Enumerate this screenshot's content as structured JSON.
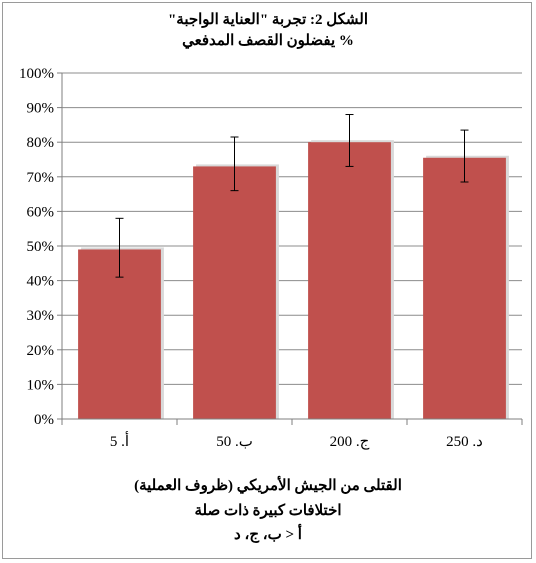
{
  "chart_data": {
    "type": "bar",
    "title": "الشكل 2: تجربة \"العناية الواجبة\"",
    "subtitle": "% يفضلون القصف المدفعي",
    "categories": [
      "أ. 5",
      "ب. 50",
      "ج. 200",
      "د. 250"
    ],
    "values": [
      0.49,
      0.73,
      0.8,
      0.755
    ],
    "error_low": [
      0.41,
      0.66,
      0.73,
      0.685
    ],
    "error_high": [
      0.58,
      0.815,
      0.88,
      0.835
    ],
    "ylim": [
      0,
      1
    ],
    "yticks": [
      "0%",
      "10%",
      "20%",
      "30%",
      "40%",
      "50%",
      "60%",
      "70%",
      "80%",
      "90%",
      "100%"
    ],
    "grid": true,
    "legend": "none",
    "xlabel_lines": [
      "القتلى من الجيش الأمريكي (ظروف العملية)",
      "اختلافات كبيرة ذات صلة",
      "أ < ب، ج، د"
    ],
    "colors": {
      "bar": "#c0504d",
      "bar_shadow": "#d9d9d9",
      "grid": "#8c8c8c",
      "axis": "#7f7f7f",
      "error": "#000000"
    }
  }
}
